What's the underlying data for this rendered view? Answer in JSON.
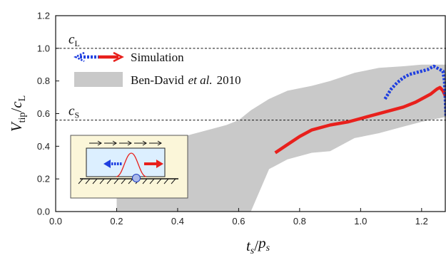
{
  "chart_data": {
    "type": "line",
    "xlabel": "t_s/p_s",
    "ylabel": "V_tip/c_L",
    "xlim": [
      0.0,
      1.28
    ],
    "ylim": [
      0.0,
      1.2
    ],
    "xticks": [
      "0.0",
      "0.2",
      "0.4",
      "0.6",
      "0.8",
      "1.0",
      "1.2"
    ],
    "yticks": [
      "0.0",
      "0.2",
      "0.4",
      "0.6",
      "0.8",
      "1.0",
      "1.2"
    ],
    "grid": false,
    "legend_position": "top-left",
    "reference_lines": [
      {
        "label": "c_L",
        "y": 1.0
      },
      {
        "label": "c_S",
        "y": 0.56
      }
    ],
    "legend": {
      "simulation": "Simulation",
      "band_author": "Ben-David",
      "band_etal": "et al.",
      "band_year": "2010"
    },
    "series": [
      {
        "name": "Simulation",
        "style": "solid",
        "color": "#e8201c",
        "x": [
          0.72,
          0.76,
          0.8,
          0.84,
          0.9,
          0.96,
          1.02,
          1.08,
          1.14,
          1.18,
          1.21,
          1.23,
          1.25,
          1.26,
          1.27,
          1.28
        ],
        "y": [
          0.36,
          0.41,
          0.46,
          0.5,
          0.53,
          0.55,
          0.58,
          0.61,
          0.64,
          0.67,
          0.7,
          0.72,
          0.75,
          0.76,
          0.74,
          0.7
        ]
      },
      {
        "name": "Simulation",
        "style": "dotted",
        "color": "#1f3fe0",
        "x": [
          1.08,
          1.1,
          1.12,
          1.14,
          1.16,
          1.18,
          1.2,
          1.22,
          1.23,
          1.24,
          1.25,
          1.26,
          1.27,
          1.275,
          1.28
        ],
        "y": [
          0.69,
          0.75,
          0.79,
          0.82,
          0.84,
          0.85,
          0.86,
          0.87,
          0.88,
          0.89,
          0.88,
          0.87,
          0.86,
          0.8,
          0.58
        ]
      }
    ],
    "band": {
      "name": "Ben-David et al. 2010",
      "color": "#c9c9c9",
      "x": [
        0.2,
        0.28,
        0.36,
        0.44,
        0.52,
        0.56,
        0.6,
        0.64,
        0.7,
        0.76,
        0.84,
        0.9,
        0.98,
        1.06,
        1.14,
        1.2,
        1.28
      ],
      "upper": [
        0.2,
        0.34,
        0.42,
        0.47,
        0.51,
        0.53,
        0.56,
        0.62,
        0.69,
        0.74,
        0.77,
        0.8,
        0.85,
        0.88,
        0.89,
        0.9,
        0.9
      ],
      "lower": [
        0.0,
        0.0,
        0.0,
        0.0,
        0.0,
        0.0,
        0.0,
        0.0,
        0.26,
        0.32,
        0.36,
        0.37,
        0.45,
        0.48,
        0.52,
        0.55,
        0.58
      ]
    },
    "inset": {
      "description": "schematic"
    }
  }
}
